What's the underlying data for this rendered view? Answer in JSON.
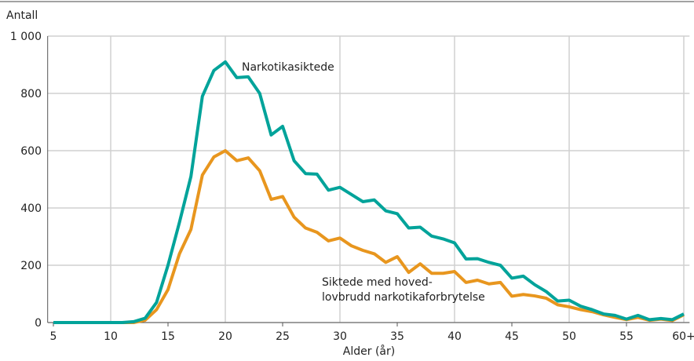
{
  "chart_data": {
    "type": "line",
    "y_axis_label": "Antall",
    "x_axis_label": "Alder (år)",
    "x": [
      5,
      6,
      7,
      8,
      9,
      10,
      11,
      12,
      13,
      14,
      15,
      16,
      17,
      18,
      19,
      20,
      21,
      22,
      23,
      24,
      25,
      26,
      27,
      28,
      29,
      30,
      31,
      32,
      33,
      34,
      35,
      36,
      37,
      38,
      39,
      40,
      41,
      42,
      43,
      44,
      45,
      46,
      47,
      48,
      49,
      50,
      51,
      52,
      53,
      54,
      55,
      56,
      57,
      58,
      59,
      60
    ],
    "series": [
      {
        "name": [
          "Narkotikasiktede"
        ],
        "color": "#00a39a",
        "values": [
          0,
          0,
          0,
          0,
          0,
          0,
          0,
          3,
          15,
          70,
          200,
          350,
          510,
          790,
          880,
          910,
          855,
          858,
          800,
          655,
          685,
          565,
          520,
          518,
          462,
          472,
          447,
          422,
          428,
          390,
          380,
          330,
          333,
          302,
          292,
          278,
          222,
          223,
          210,
          200,
          155,
          162,
          132,
          108,
          75,
          78,
          57,
          45,
          30,
          25,
          12,
          25,
          10,
          14,
          10,
          30
        ]
      },
      {
        "name": [
          "Siktede med hoved-",
          "lovbrudd narkotikaforbrytelse"
        ],
        "color": "#e8961e",
        "values": [
          0,
          0,
          0,
          0,
          0,
          0,
          0,
          0,
          8,
          45,
          115,
          240,
          325,
          515,
          578,
          600,
          565,
          575,
          530,
          430,
          440,
          368,
          330,
          315,
          285,
          295,
          268,
          252,
          240,
          210,
          230,
          175,
          205,
          172,
          172,
          178,
          140,
          148,
          135,
          140,
          92,
          98,
          93,
          85,
          62,
          55,
          45,
          38,
          27,
          18,
          10,
          18,
          8,
          12,
          7,
          27
        ]
      }
    ],
    "xlim": [
      4.5,
      60.5
    ],
    "xticks": [
      5,
      10,
      15,
      20,
      25,
      30,
      35,
      40,
      45,
      50,
      55,
      {
        "value": 60,
        "label": "60+"
      }
    ],
    "ylim": [
      0,
      1000
    ],
    "yticks": [
      0,
      200,
      400,
      600,
      800,
      {
        "value": 1000,
        "label": "1 000"
      }
    ],
    "grid": true
  }
}
